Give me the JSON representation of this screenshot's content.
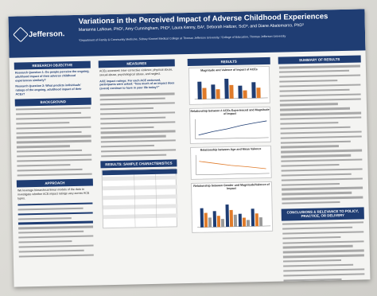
{
  "poster": {
    "logo_text": "Jefferson.",
    "title": "Variations in the Perceived Impact of Adverse Childhood Experiences",
    "authors": "Marianna LaNoue, PhD¹, Amy Cunningham, PhD², Laura Kenny, BA², Deborah Haltzer, ScD³, and Diane Abatemarco, PhD³",
    "affiliations": "¹Department of Family & Community Medicine, Sidney Kimmel Medical College at Thomas Jefferson University; ²College of Education, Thomas Jefferson University"
  },
  "sections": {
    "research_objective": "RESEARCH OBJECTIVE",
    "background": "BACKGROUND",
    "approach": "APPROACH",
    "measures": "MEASURES",
    "sample": "RESULTS: SAMPLE CHARACTERISTICS",
    "results": "RESULTS",
    "summary": "SUMMARY OF RESULTS",
    "conclusions": "CONCLUSIONS & RELEVANCE TO POLICY, PRACTICE, OR DELIVERY"
  },
  "text": {
    "objective_lead": "Research Question 1: Do people perceive the ongoing, adulthood impact of their adverse childhood experiences similarly?",
    "objective_q2": "Research Question 2: What predicts individuals' ratings of the ongoing, adulthood impact of their ACEs?",
    "measures_lead": "ACEs assessed: Inter-corrective violence, physical abuse, sexual abuse, psychological abuse, and neglect.",
    "measures_impact": "ACE impact ratings: For each ACE endorsed, participants were asked: \"how much of an impact does (event) continue to have in your life today?\"",
    "approach_lead": "We leverage hierarchical linear models of the data to investigate whether ACE impact ratings vary across ACE types."
  },
  "charts": {
    "left_chart_title": "Magnitude and Valence of Impact of ACEs",
    "mid_chart_title": "Relationship between # ACEs Experienced and Magnitude of Impact",
    "lower_chart_title": "Relationship between Age and Mean Valence",
    "gender_chart_title": "Relationship between Gender and Magnitude/Valence of Impact",
    "colors": {
      "navy": "#1f3d73",
      "orange": "#e07b2a",
      "gray": "#9a9a9a",
      "light_blue": "#7ea6d9"
    }
  }
}
